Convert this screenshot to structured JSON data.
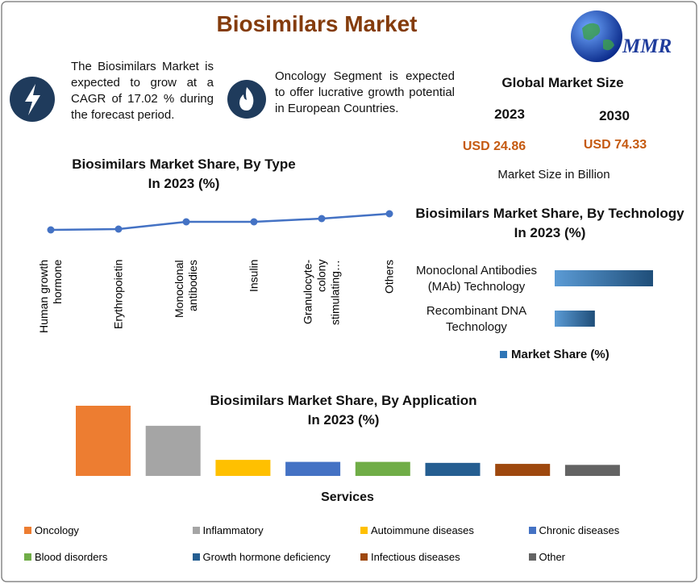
{
  "title": "Biosimilars Market",
  "logo": "MMR",
  "highlights": [
    {
      "text": "The Biosimilars Market is expected to grow at a CAGR of 17.02 % during the forecast period."
    },
    {
      "text": "Oncology Segment is expected to offer lucrative growth potential in European Countries."
    }
  ],
  "market_size": {
    "title": "Global Market Size",
    "years": [
      "2023",
      "2030"
    ],
    "values": [
      "USD 24.86",
      "USD 74.33"
    ],
    "note": "Market Size in Billion"
  },
  "chart_data": [
    {
      "type": "line",
      "title": "Biosimilars Market Share, By Type",
      "subtitle": "In 2023 (%)",
      "categories": [
        "Human growth hormone",
        "Erythropoietin",
        "Monoclonal antibodies",
        "Insulin",
        "Granulocyte-colony stimulating…",
        "Others"
      ],
      "values": [
        10,
        10.5,
        15,
        15,
        17,
        20
      ],
      "color": "#4472c4"
    },
    {
      "type": "barh",
      "title": "Biosimilars Market Share, By Technology",
      "subtitle": "In 2023 (%)",
      "categories": [
        "Monoclonal Antibodies (MAb) Technology",
        "Recombinant DNA Technology"
      ],
      "series": [
        {
          "name": "Market Share (%)",
          "color": "#2e75b6",
          "values": [
            71,
            29
          ]
        }
      ]
    },
    {
      "type": "bar",
      "title": "Biosimilars Market Share, By Application",
      "subtitle": "In 2023 (%)",
      "xlabel": "Services",
      "categories": [
        "Oncology",
        "Inflammatory",
        "Autoimmune diseases",
        "Chronic diseases",
        "Blood disorders",
        "Growth hormone deficiency",
        "Infectious diseases",
        "Other"
      ],
      "values": [
        35,
        25,
        8,
        7,
        7,
        6.5,
        6,
        5.5
      ],
      "colors": [
        "#ed7d31",
        "#a5a5a5",
        "#ffc000",
        "#4472c4",
        "#70ad47",
        "#255e91",
        "#9e480e",
        "#636363"
      ]
    }
  ]
}
